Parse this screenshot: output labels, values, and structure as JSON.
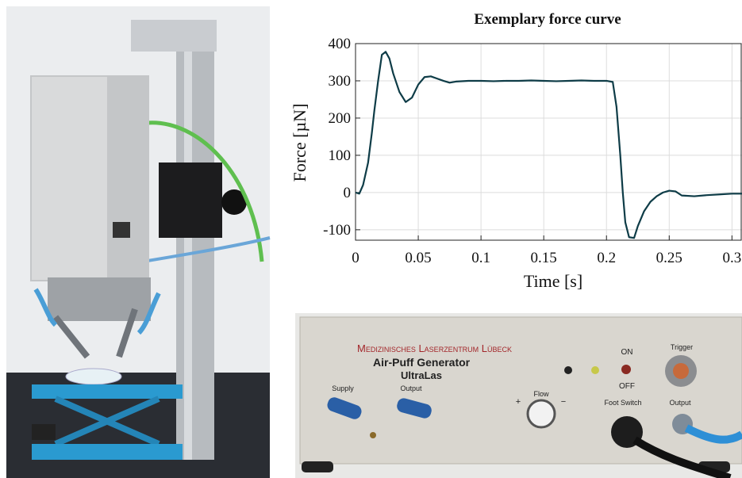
{
  "chart_data": {
    "type": "line",
    "title": "Exemplary force curve",
    "x_label": "Time [s]",
    "y_label": "Force [µN]",
    "x": [
      0,
      0.003,
      0.006,
      0.01,
      0.013,
      0.015,
      0.018,
      0.021,
      0.024,
      0.027,
      0.03,
      0.035,
      0.04,
      0.045,
      0.05,
      0.055,
      0.06,
      0.065,
      0.07,
      0.075,
      0.08,
      0.09,
      0.1,
      0.11,
      0.12,
      0.13,
      0.14,
      0.15,
      0.16,
      0.17,
      0.18,
      0.19,
      0.2,
      0.205,
      0.208,
      0.211,
      0.213,
      0.215,
      0.218,
      0.222,
      0.225,
      0.23,
      0.235,
      0.24,
      0.245,
      0.25,
      0.255,
      0.26,
      0.27,
      0.28,
      0.29,
      0.3,
      0.308
    ],
    "values": [
      0,
      -3,
      20,
      80,
      160,
      220,
      300,
      370,
      378,
      360,
      320,
      270,
      243,
      255,
      290,
      310,
      312,
      306,
      300,
      295,
      298,
      300,
      300,
      299,
      300,
      300,
      301,
      300,
      299,
      300,
      301,
      300,
      300,
      297,
      230,
      100,
      0,
      -80,
      -120,
      -122,
      -90,
      -50,
      -25,
      -10,
      0,
      5,
      3,
      -8,
      -10,
      -7,
      -5,
      -3,
      -3
    ],
    "color": "#0e3c47",
    "xlim": [
      0,
      0.308
    ],
    "ylim": [
      -128,
      400
    ],
    "xticks": [
      0,
      0.05,
      0.1,
      0.15,
      0.2,
      0.25,
      0.3
    ],
    "yticks": [
      -100,
      0,
      100,
      200,
      300,
      400
    ],
    "grid": true
  },
  "device_panel": {
    "logo": "Medizinisches Laserzentrum Lübeck",
    "name": "Air-Puff Generator",
    "model": "UltraLas",
    "switch_on": "ON",
    "switch_off": "OFF",
    "trigger": "Trigger",
    "supply": "Supply",
    "output_left": "Output",
    "flow": "Flow",
    "plus": "+",
    "minus": "−",
    "foot_switch": "Foot Switch",
    "output_right": "Output"
  }
}
